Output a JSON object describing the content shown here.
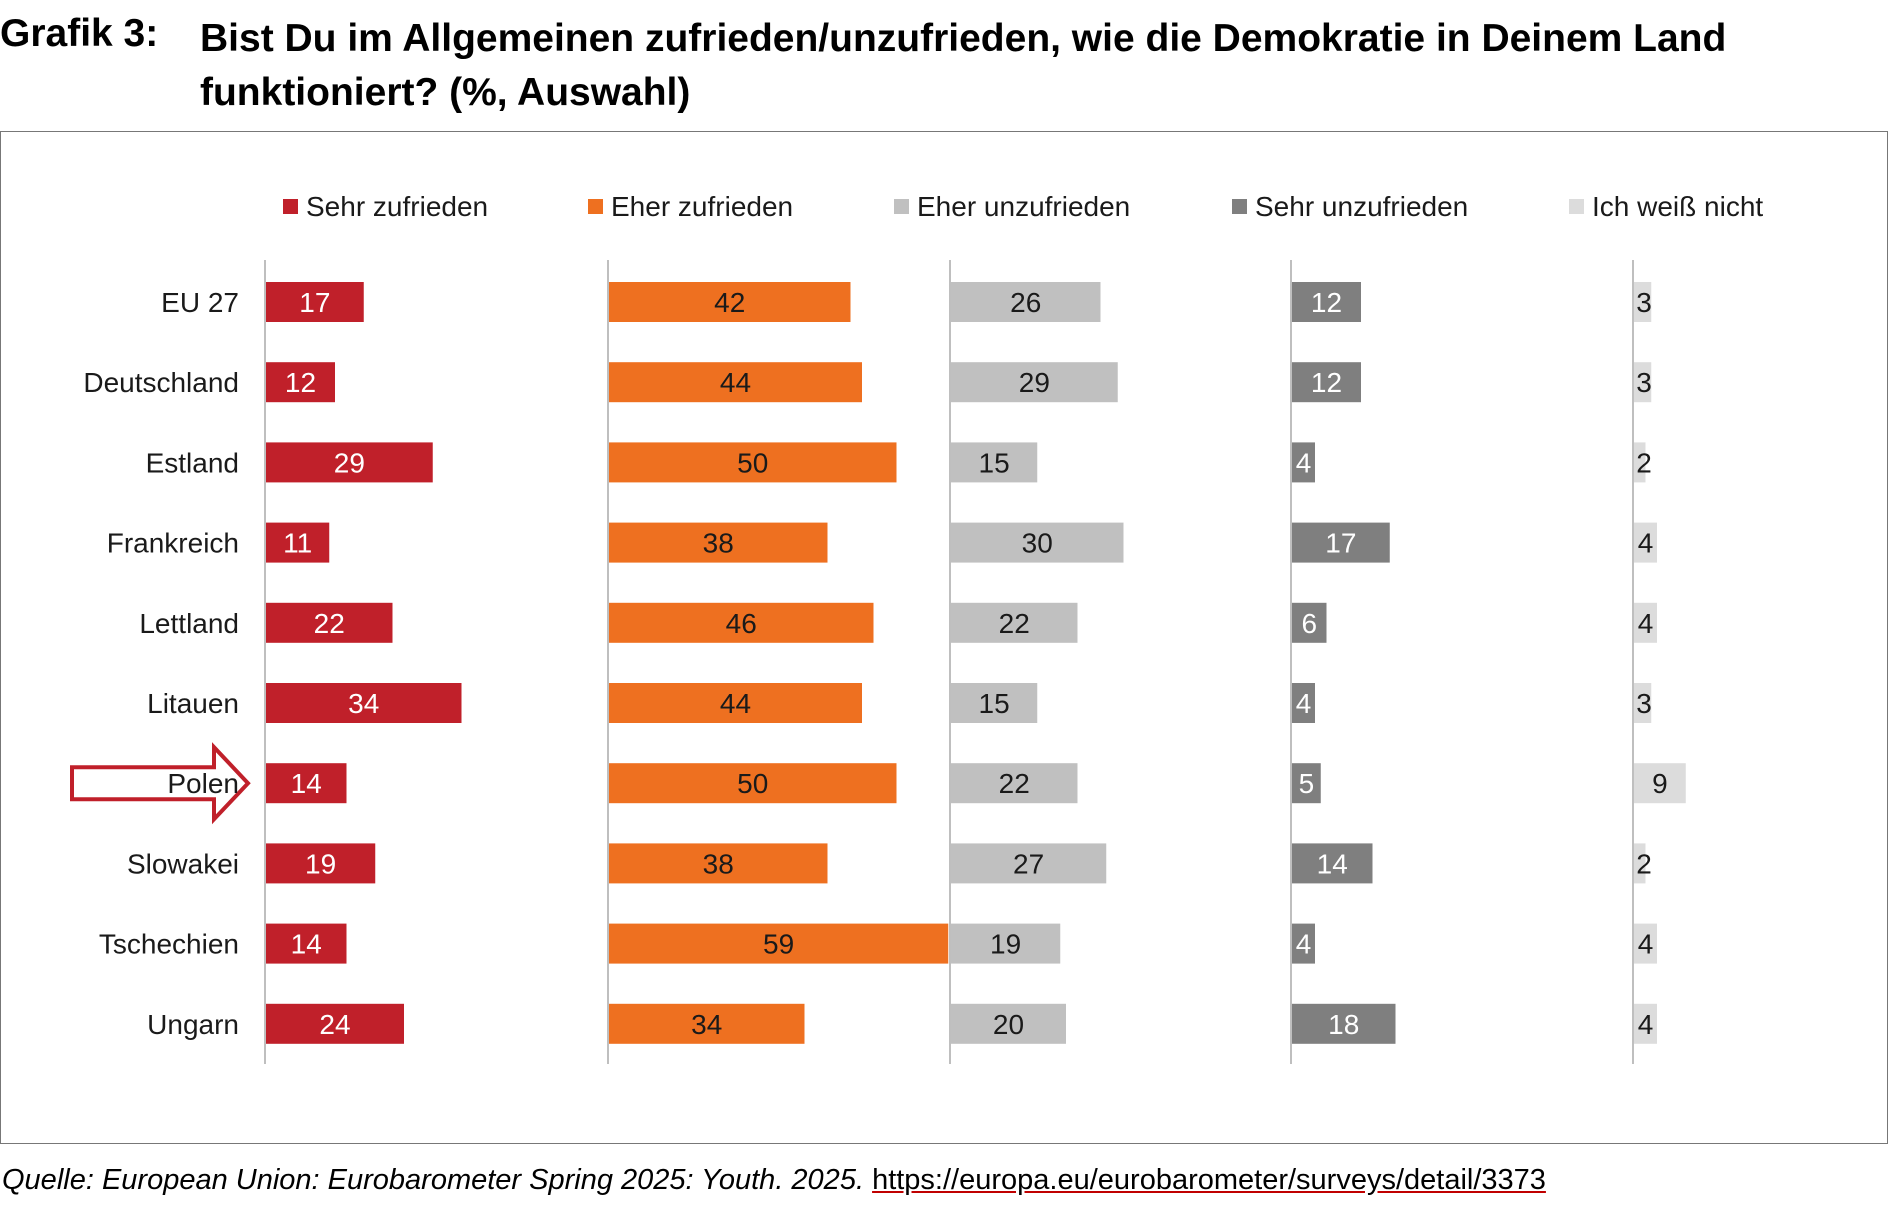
{
  "header": {
    "label": "Grafik 3:",
    "title": "Bist Du im Allgemeinen zufrieden/unzufrieden, wie die Demokratie in Deinem Land funktioniert? (%, Auswahl)"
  },
  "chart_data": {
    "type": "bar",
    "orientation": "horizontal",
    "layout": "small-multiples",
    "title": "Bist Du im Allgemeinen zufrieden/unzufrieden, wie die Demokratie in Deinem Land funktioniert? (%, Auswahl)",
    "xlabel": "",
    "ylabel": "",
    "unit": "%",
    "legend_position": "top",
    "highlight": "Polen",
    "categories": [
      "EU 27",
      "Deutschland",
      "Estland",
      "Frankreich",
      "Lettland",
      "Litauen",
      "Polen",
      "Slowakei",
      "Tschechien",
      "Ungarn"
    ],
    "series": [
      {
        "name": "Sehr zufrieden",
        "color": "#c0202a",
        "label_color": "#ffffff",
        "values": [
          17,
          12,
          29,
          11,
          22,
          34,
          14,
          19,
          14,
          24
        ]
      },
      {
        "name": "Eher zufrieden",
        "color": "#ee7020",
        "label_color": "#1a1a1a",
        "values": [
          42,
          44,
          50,
          38,
          46,
          44,
          50,
          38,
          59,
          34
        ]
      },
      {
        "name": "Eher unzufrieden",
        "color": "#c0c0c0",
        "label_color": "#1a1a1a",
        "values": [
          26,
          29,
          15,
          30,
          22,
          15,
          22,
          27,
          19,
          20
        ]
      },
      {
        "name": "Sehr unzufrieden",
        "color": "#7f7f7f",
        "label_color": "#ffffff",
        "values": [
          12,
          12,
          4,
          17,
          6,
          4,
          5,
          14,
          4,
          18
        ]
      },
      {
        "name": "Ich weiß nicht",
        "color": "#dcdcdc",
        "label_color": "#1a1a1a",
        "values": [
          3,
          3,
          2,
          4,
          4,
          3,
          9,
          2,
          4,
          4
        ]
      }
    ]
  },
  "source": {
    "prefix": "Quelle: European Union: Eurobarometer Spring 2025: Youth. 2025.",
    "url": "https://europa.eu/eurobarometer/surveys/detail/3373"
  }
}
